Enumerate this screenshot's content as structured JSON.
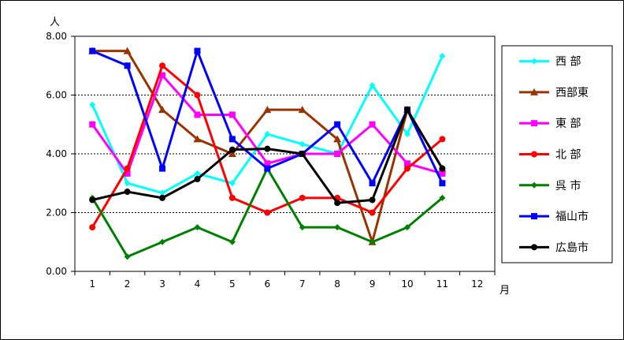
{
  "chart_data": {
    "type": "line",
    "title": "",
    "ylabel": "人",
    "xlabel": "月",
    "categories": [
      "1",
      "2",
      "3",
      "4",
      "5",
      "6",
      "7",
      "8",
      "9",
      "10",
      "11",
      "12"
    ],
    "ylim": [
      0,
      8
    ],
    "yticks": [
      "0.00",
      "2.00",
      "4.00",
      "6.00",
      "8.00"
    ],
    "grid": "horizontal-dashed",
    "legend": "right",
    "series": [
      {
        "name": "西 部",
        "color": "#00ffff",
        "marker": "diamond",
        "values": [
          5.67,
          3.0,
          2.67,
          3.33,
          3.0,
          4.67,
          4.33,
          4.0,
          6.33,
          4.67,
          7.33,
          null
        ]
      },
      {
        "name": "西部東",
        "color": "#993300",
        "marker": "triangle",
        "values": [
          7.5,
          7.5,
          5.5,
          4.5,
          4.0,
          5.5,
          5.5,
          4.5,
          1.0,
          5.5,
          3.5,
          null
        ]
      },
      {
        "name": "東 部",
        "color": "#ff00ff",
        "marker": "square",
        "values": [
          5.0,
          3.33,
          6.67,
          5.33,
          5.33,
          3.67,
          4.0,
          4.0,
          5.0,
          3.67,
          3.33,
          null
        ]
      },
      {
        "name": "北 部",
        "color": "#ff0000",
        "marker": "circle",
        "values": [
          1.5,
          3.5,
          7.0,
          6.0,
          2.5,
          2.0,
          2.5,
          2.5,
          2.0,
          3.5,
          4.5,
          null
        ]
      },
      {
        "name": "呉 市",
        "color": "#008000",
        "marker": "diamond",
        "values": [
          2.5,
          0.5,
          1.0,
          1.5,
          1.0,
          3.5,
          1.5,
          1.5,
          1.0,
          1.5,
          2.5,
          null
        ]
      },
      {
        "name": "福山市",
        "color": "#0000ff",
        "marker": "square",
        "values": [
          7.5,
          7.0,
          3.5,
          7.5,
          4.5,
          3.5,
          4.0,
          5.0,
          3.0,
          5.5,
          3.0,
          null
        ]
      },
      {
        "name": "広島市",
        "color": "#000000",
        "marker": "circle",
        "values": [
          2.43,
          2.71,
          2.5,
          3.14,
          4.14,
          4.17,
          4.0,
          2.33,
          2.43,
          5.5,
          3.5,
          null
        ]
      }
    ]
  }
}
